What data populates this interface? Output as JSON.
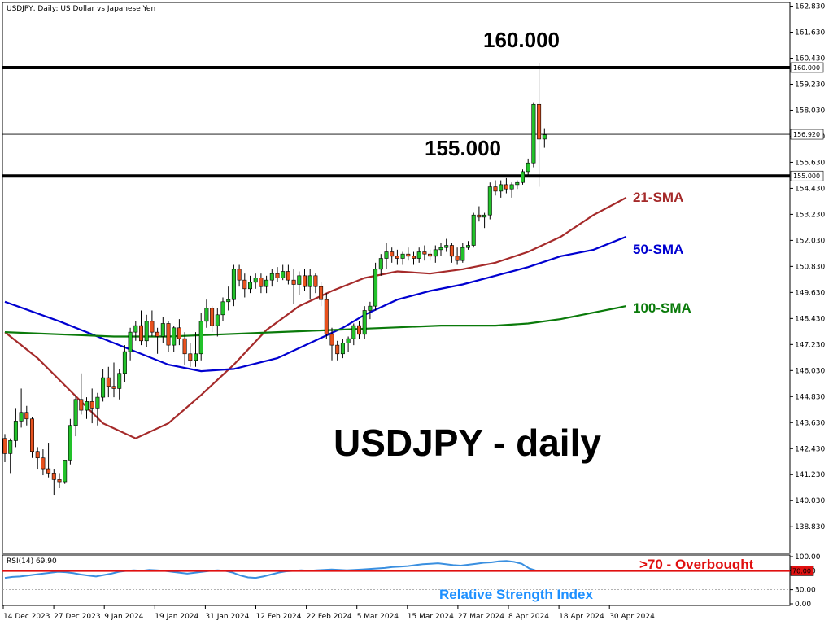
{
  "chart_data": [
    {
      "type": "candlestick",
      "title": "USDJPY, Daily:  US Dollar vs Japanese Yen",
      "heading": "USDJPY - daily",
      "ylim": [
        137.6,
        163.0
      ],
      "y_ticks": [
        "162.830",
        "161.630",
        "160.430",
        "159.230",
        "158.030",
        "156.830",
        "155.630",
        "154.430",
        "153.230",
        "152.030",
        "150.830",
        "149.630",
        "148.430",
        "147.230",
        "146.030",
        "144.830",
        "143.630",
        "142.430",
        "141.230",
        "140.030",
        "138.830"
      ],
      "x_ticks": [
        "14 Dec 2023",
        "27 Dec 2023",
        "9 Jan 2024",
        "19 Jan 2024",
        "31 Jan 2024",
        "12 Feb 2024",
        "22 Feb 2024",
        "5 Mar 2024",
        "15 Mar 2024",
        "27 Mar 2024",
        "8 Apr 2024",
        "18 Apr 2024",
        "30 Apr 2024"
      ],
      "levels": [
        {
          "label": "160.000",
          "value": 160.0,
          "badge": "160.000"
        },
        {
          "label": "155.000",
          "value": 155.0,
          "badge": "155.000"
        }
      ],
      "current_price": {
        "value": 156.92,
        "badge": "156.920"
      },
      "candles": [
        [
          142.9,
          143.1,
          141.8,
          142.2
        ],
        [
          142.2,
          142.9,
          141.3,
          142.8
        ],
        [
          142.8,
          144.3,
          142.5,
          143.7
        ],
        [
          143.7,
          145.2,
          143.4,
          144.1
        ],
        [
          144.1,
          144.4,
          143.5,
          143.8
        ],
        [
          143.8,
          143.9,
          142.0,
          142.3
        ],
        [
          142.3,
          142.5,
          141.5,
          142.0
        ],
        [
          142.0,
          142.4,
          141.2,
          141.5
        ],
        [
          141.5,
          142.7,
          141.1,
          141.3
        ],
        [
          141.3,
          141.5,
          140.3,
          141.0
        ],
        [
          141.0,
          141.3,
          140.6,
          140.9
        ],
        [
          140.9,
          141.7,
          140.8,
          141.9
        ],
        [
          141.9,
          143.8,
          141.7,
          143.5
        ],
        [
          143.5,
          144.9,
          143.0,
          144.7
        ],
        [
          144.7,
          145.9,
          144.0,
          144.2
        ],
        [
          144.2,
          144.8,
          143.8,
          144.6
        ],
        [
          144.6,
          145.2,
          143.6,
          144.3
        ],
        [
          144.3,
          145.0,
          143.5,
          144.8
        ],
        [
          144.8,
          146.1,
          144.6,
          145.7
        ],
        [
          145.7,
          146.2,
          144.8,
          145.3
        ],
        [
          145.3,
          146.4,
          144.8,
          145.2
        ],
        [
          145.2,
          146.1,
          144.7,
          145.9
        ],
        [
          145.9,
          147.2,
          145.5,
          146.9
        ],
        [
          146.9,
          148.0,
          146.5,
          147.8
        ],
        [
          147.8,
          148.3,
          147.4,
          148.1
        ],
        [
          148.1,
          148.8,
          147.2,
          147.4
        ],
        [
          147.4,
          148.6,
          147.1,
          148.3
        ],
        [
          148.3,
          148.8,
          147.6,
          147.8
        ],
        [
          147.8,
          148.0,
          146.8,
          147.6
        ],
        [
          147.6,
          148.5,
          147.3,
          148.2
        ],
        [
          148.2,
          148.3,
          146.9,
          147.2
        ],
        [
          147.2,
          148.1,
          146.9,
          148.0
        ],
        [
          148.0,
          148.4,
          147.2,
          147.5
        ],
        [
          147.5,
          147.8,
          146.3,
          146.8
        ],
        [
          146.8,
          147.3,
          146.2,
          146.5
        ],
        [
          146.5,
          147.8,
          146.2,
          146.8
        ],
        [
          146.8,
          148.7,
          146.5,
          148.3
        ],
        [
          148.3,
          149.3,
          148.0,
          148.9
        ],
        [
          148.9,
          149.0,
          147.8,
          148.1
        ],
        [
          148.1,
          148.9,
          147.6,
          148.6
        ],
        [
          148.6,
          149.4,
          148.3,
          149.2
        ],
        [
          149.2,
          149.9,
          148.8,
          149.3
        ],
        [
          149.3,
          150.9,
          149.0,
          150.7
        ],
        [
          150.7,
          150.9,
          149.9,
          150.2
        ],
        [
          150.2,
          150.5,
          149.4,
          149.8
        ],
        [
          149.8,
          150.4,
          149.6,
          150.1
        ],
        [
          150.1,
          150.5,
          149.8,
          150.3
        ],
        [
          150.3,
          150.5,
          149.6,
          149.9
        ],
        [
          149.9,
          150.4,
          149.6,
          150.2
        ],
        [
          150.2,
          150.7,
          149.9,
          150.5
        ],
        [
          150.5,
          150.8,
          150.1,
          150.3
        ],
        [
          150.3,
          150.9,
          150.2,
          150.6
        ],
        [
          150.6,
          150.9,
          150.0,
          150.2
        ],
        [
          150.2,
          150.7,
          149.1,
          150.0
        ],
        [
          150.0,
          150.6,
          149.5,
          150.4
        ],
        [
          150.4,
          150.7,
          149.7,
          149.9
        ],
        [
          149.9,
          150.7,
          149.3,
          150.4
        ],
        [
          150.4,
          150.5,
          149.6,
          149.9
        ],
        [
          149.9,
          150.1,
          149.0,
          149.3
        ],
        [
          149.3,
          149.6,
          147.5,
          147.7
        ],
        [
          147.7,
          148.0,
          146.5,
          147.2
        ],
        [
          147.2,
          147.4,
          146.5,
          146.8
        ],
        [
          146.8,
          147.5,
          146.6,
          147.3
        ],
        [
          147.3,
          147.6,
          146.9,
          147.5
        ],
        [
          147.5,
          148.2,
          147.2,
          148.1
        ],
        [
          148.1,
          148.3,
          147.5,
          147.7
        ],
        [
          147.7,
          149.0,
          147.5,
          148.8
        ],
        [
          148.8,
          149.2,
          148.4,
          149.0
        ],
        [
          149.0,
          151.0,
          148.8,
          150.7
        ],
        [
          150.7,
          151.4,
          150.4,
          151.2
        ],
        [
          151.2,
          151.9,
          150.7,
          151.5
        ],
        [
          151.5,
          151.7,
          151.0,
          151.3
        ],
        [
          151.3,
          151.6,
          150.9,
          151.2
        ],
        [
          151.2,
          151.5,
          150.9,
          151.4
        ],
        [
          151.4,
          151.7,
          151.1,
          151.3
        ],
        [
          151.3,
          151.5,
          150.9,
          151.2
        ],
        [
          151.2,
          151.7,
          151.0,
          151.5
        ],
        [
          151.5,
          151.8,
          151.1,
          151.4
        ],
        [
          151.4,
          151.6,
          151.1,
          151.3
        ],
        [
          151.3,
          151.8,
          151.0,
          151.6
        ],
        [
          151.6,
          151.9,
          151.3,
          151.7
        ],
        [
          151.7,
          152.1,
          151.5,
          151.8
        ],
        [
          151.8,
          151.9,
          151.0,
          151.3
        ],
        [
          151.3,
          151.7,
          150.9,
          151.1
        ],
        [
          151.1,
          151.9,
          151.0,
          151.7
        ],
        [
          151.7,
          152.0,
          151.6,
          151.8
        ],
        [
          151.8,
          153.3,
          151.7,
          153.2
        ],
        [
          153.2,
          153.6,
          152.9,
          153.1
        ],
        [
          153.1,
          153.3,
          152.6,
          153.2
        ],
        [
          153.2,
          154.7,
          153.0,
          154.5
        ],
        [
          154.5,
          154.8,
          154.1,
          154.3
        ],
        [
          154.3,
          154.8,
          154.0,
          154.6
        ],
        [
          154.6,
          154.9,
          154.2,
          154.4
        ],
        [
          154.4,
          154.7,
          154.0,
          154.6
        ],
        [
          154.6,
          154.8,
          154.4,
          154.7
        ],
        [
          154.7,
          155.3,
          154.6,
          155.2
        ],
        [
          155.2,
          155.8,
          155.0,
          155.6
        ],
        [
          155.6,
          158.4,
          155.4,
          158.3
        ],
        [
          158.3,
          160.2,
          154.5,
          156.7
        ],
        [
          156.7,
          157.2,
          156.3,
          156.9
        ]
      ],
      "series": [
        {
          "name": "21-SMA",
          "color": "#a52a2a",
          "points": [
            [
              0,
              147.8
            ],
            [
              6,
              146.6
            ],
            [
              12,
              145.1
            ],
            [
              18,
              143.6
            ],
            [
              24,
              142.9
            ],
            [
              30,
              143.6
            ],
            [
              36,
              144.9
            ],
            [
              42,
              146.3
            ],
            [
              48,
              147.9
            ],
            [
              54,
              149.0
            ],
            [
              60,
              149.7
            ],
            [
              66,
              150.3
            ],
            [
              72,
              150.6
            ],
            [
              78,
              150.5
            ],
            [
              84,
              150.7
            ],
            [
              90,
              151.0
            ],
            [
              96,
              151.5
            ],
            [
              102,
              152.2
            ],
            [
              108,
              153.2
            ],
            [
              114,
              154.0
            ]
          ]
        },
        {
          "name": "50-SMA",
          "color": "#0000d0",
          "points": [
            [
              0,
              149.2
            ],
            [
              10,
              148.3
            ],
            [
              20,
              147.3
            ],
            [
              30,
              146.3
            ],
            [
              36,
              146.0
            ],
            [
              42,
              146.1
            ],
            [
              50,
              146.6
            ],
            [
              56,
              147.3
            ],
            [
              62,
              148.0
            ],
            [
              66,
              148.6
            ],
            [
              72,
              149.3
            ],
            [
              78,
              149.7
            ],
            [
              84,
              150.0
            ],
            [
              90,
              150.4
            ],
            [
              96,
              150.8
            ],
            [
              102,
              151.3
            ],
            [
              108,
              151.6
            ],
            [
              114,
              152.2
            ]
          ]
        },
        {
          "name": "100-SMA",
          "color": "#0a7a0a",
          "points": [
            [
              0,
              147.8
            ],
            [
              10,
              147.7
            ],
            [
              20,
              147.6
            ],
            [
              30,
              147.6
            ],
            [
              40,
              147.7
            ],
            [
              50,
              147.8
            ],
            [
              60,
              147.9
            ],
            [
              70,
              148.0
            ],
            [
              80,
              148.1
            ],
            [
              90,
              148.1
            ],
            [
              96,
              148.2
            ],
            [
              102,
              148.4
            ],
            [
              108,
              148.7
            ],
            [
              114,
              149.0
            ]
          ]
        }
      ],
      "labels": [
        "21-SMA",
        "50-SMA",
        "100-SMA"
      ]
    },
    {
      "type": "line",
      "title": "RSI(14) 69.90",
      "ylim": [
        0,
        100
      ],
      "y_ticks": [
        "100.00",
        "70.00",
        "30.00",
        "0.00"
      ],
      "overbought_level": 70,
      "overbought_badge": "70.00",
      "overbought_label": ">70 - Overbought",
      "label": "Relative Strength Index",
      "values": [
        55,
        57,
        58,
        60,
        62,
        64,
        66,
        68,
        67,
        65,
        62,
        60,
        58,
        61,
        64,
        68,
        70,
        71,
        70,
        72,
        71,
        70,
        68,
        66,
        64,
        66,
        68,
        70,
        71,
        70,
        66,
        60,
        56,
        55,
        58,
        62,
        66,
        69,
        70,
        71,
        70,
        71,
        72,
        73,
        72,
        71,
        72,
        73,
        74,
        75,
        76,
        78,
        79,
        80,
        82,
        84,
        85,
        86,
        84,
        82,
        81,
        83,
        85,
        87,
        88,
        90,
        91,
        89,
        85,
        75,
        70,
        69.9
      ]
    }
  ]
}
